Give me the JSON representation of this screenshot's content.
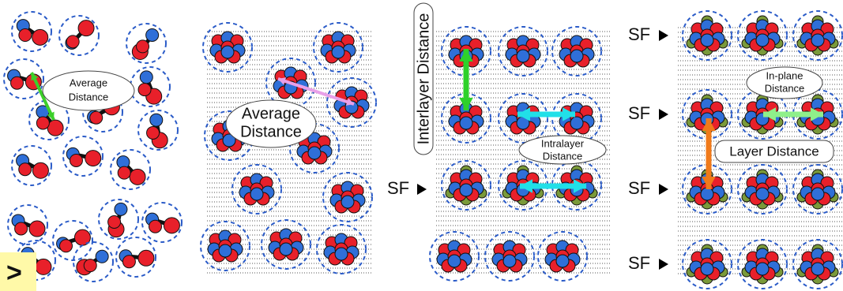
{
  "panels": [
    {
      "label": [
        "Average",
        "Distance"
      ]
    },
    {
      "label": [
        "Average",
        "Distance"
      ]
    },
    {
      "interlayer": "Interlayer Distance",
      "intralayer": [
        "Intralayer",
        "Distance"
      ],
      "sf": "SF"
    },
    {
      "sf": [
        "SF",
        "SF",
        "SF",
        "SF"
      ],
      "in_plane": [
        "In-plane",
        "Distance"
      ],
      "layer": "Layer Distance"
    }
  ],
  "corner_mark": ">"
}
